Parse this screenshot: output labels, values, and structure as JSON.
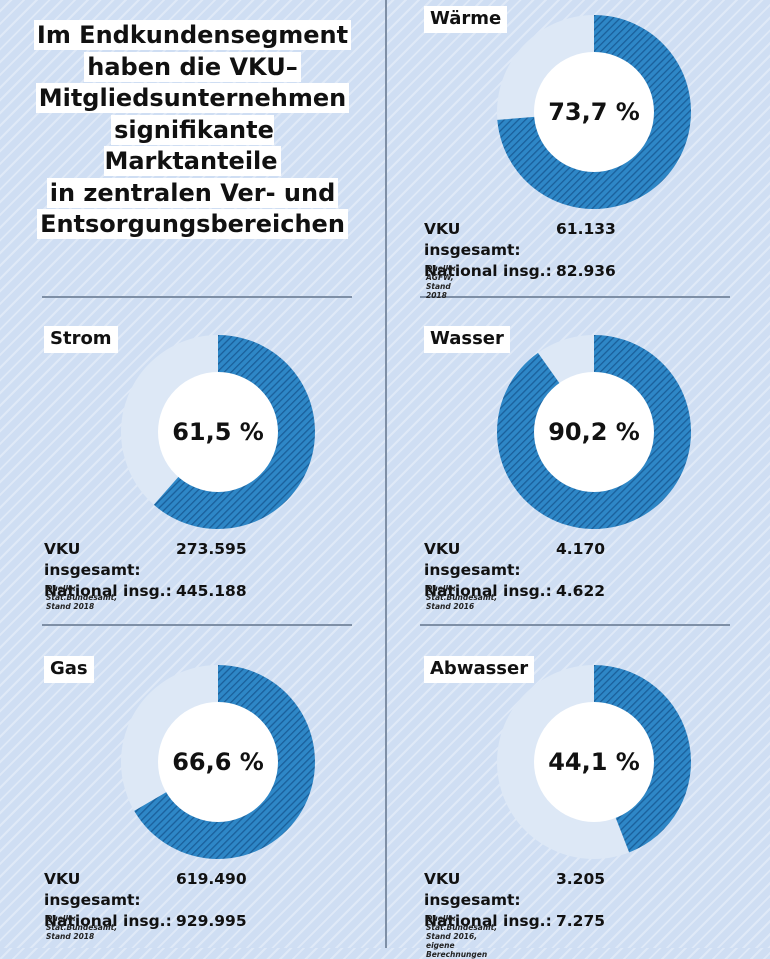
{
  "headline": [
    "Im Endkundensegment",
    "haben die VKU–",
    "Mitgliedsunternehmen",
    "signifikante Marktanteile",
    "in zentralen Ver- und",
    "Entsorgungsbereichen"
  ],
  "colors": {
    "background": "#cfdef3",
    "share": "#2e87c7",
    "remainder": "#dde8f6",
    "divider": "#7e8fa6"
  },
  "chart_data": [
    {
      "type": "pie",
      "title": "Wärme",
      "center_label": "73,7 %",
      "value_percent": 73.7,
      "stats": [
        {
          "label": "VKU insgesamt:",
          "value": "61.133"
        },
        {
          "label": "National insg.:",
          "value": "82.936"
        }
      ],
      "source": "Quelle: AGFW, Stand 2018"
    },
    {
      "type": "pie",
      "title": "Strom",
      "center_label": "61,5 %",
      "value_percent": 61.5,
      "stats": [
        {
          "label": "VKU insgesamt:",
          "value": "273.595"
        },
        {
          "label": "National insg.:",
          "value": "445.188"
        }
      ],
      "source": "Quelle: Stat.Bundesamt, Stand 2018"
    },
    {
      "type": "pie",
      "title": "Wasser",
      "center_label": "90,2 %",
      "value_percent": 90.2,
      "stats": [
        {
          "label": "VKU insgesamt:",
          "value": "4.170"
        },
        {
          "label": "National insg.:",
          "value": "4.622"
        }
      ],
      "source": "Quelle: Stat.Bundesamt, Stand 2016"
    },
    {
      "type": "pie",
      "title": "Gas",
      "center_label": "66,6 %",
      "value_percent": 66.6,
      "stats": [
        {
          "label": "VKU insgesamt:",
          "value": "619.490"
        },
        {
          "label": "National insg.:",
          "value": "929.995"
        }
      ],
      "source": "Quelle: Stat.Bundesamt, Stand 2018"
    },
    {
      "type": "pie",
      "title": "Abwasser",
      "center_label": "44,1 %",
      "value_percent": 44.1,
      "stats": [
        {
          "label": "VKU insgesamt:",
          "value": "3.205"
        },
        {
          "label": "National insg.:",
          "value": "7.275"
        }
      ],
      "source": "Quelle: Stat.Bundesamt, Stand 2016, eigene Berechnungen"
    }
  ]
}
